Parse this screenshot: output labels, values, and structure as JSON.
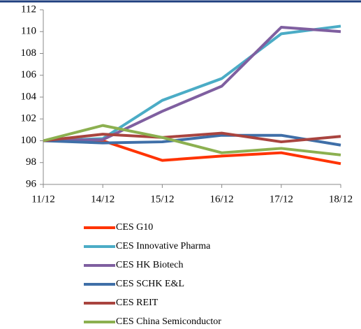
{
  "chart_data": {
    "type": "line",
    "categories": [
      "11/12",
      "14/12",
      "15/12",
      "16/12",
      "17/12",
      "18/12"
    ],
    "series": [
      {
        "name": "CES G10",
        "color": "#ff3300",
        "values": [
          100,
          100,
          98.2,
          98.6,
          98.9,
          97.9
        ]
      },
      {
        "name": "CES Innovative Pharma",
        "color": "#4bacc6",
        "values": [
          100,
          100.2,
          103.7,
          105.7,
          109.8,
          110.5
        ]
      },
      {
        "name": "CES HK Biotech",
        "color": "#7f5fa0",
        "values": [
          100,
          100.1,
          102.7,
          105.0,
          110.4,
          110.0
        ]
      },
      {
        "name": "CES SCHK E&L",
        "color": "#3f6fa8",
        "values": [
          100,
          99.8,
          99.9,
          100.5,
          100.5,
          99.6
        ]
      },
      {
        "name": "CES REIT",
        "color": "#a9443f",
        "values": [
          100,
          100.6,
          100.3,
          100.7,
          99.9,
          100.4
        ]
      },
      {
        "name": "CES China Semiconductor",
        "color": "#8cb050",
        "values": [
          100,
          101.4,
          100.3,
          98.9,
          99.3,
          98.7
        ]
      }
    ],
    "ylim": [
      96,
      112
    ],
    "yticks": [
      96,
      98,
      100,
      102,
      104,
      106,
      108,
      110,
      112
    ],
    "legend": "bottom"
  }
}
